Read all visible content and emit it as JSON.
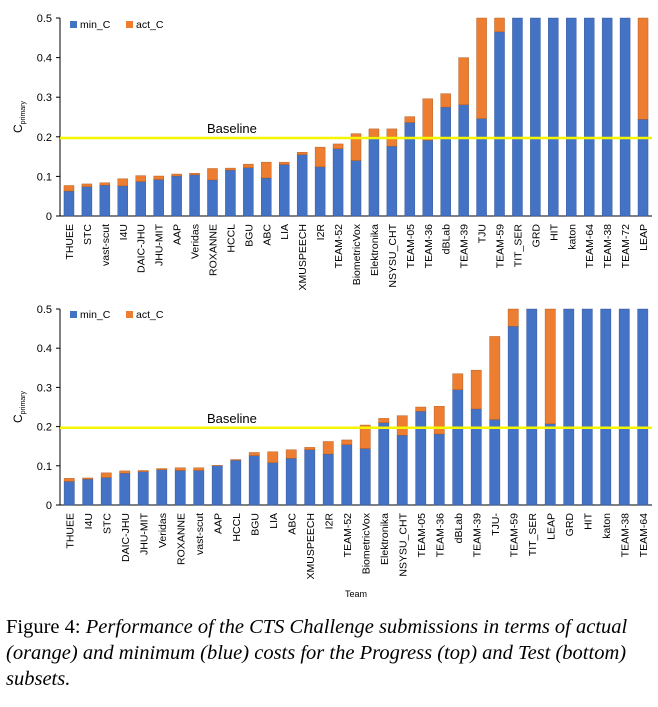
{
  "chart_data": [
    {
      "type": "bar",
      "stacked": true,
      "ylabel_main": "C",
      "ylabel_sub": "primary",
      "xlabel": "",
      "ylim": [
        0,
        0.5
      ],
      "yticks": [
        "0",
        "0.1",
        "0.2",
        "0.3",
        "0.4",
        "0.5"
      ],
      "baseline": {
        "label": "Baseline",
        "value": 0.197,
        "color": "#f5f500"
      },
      "legend": {
        "position": "top-left"
      },
      "categories": [
        "THUEE",
        "STC",
        "vast-scut",
        "I4U",
        "DAIC-JHU",
        "JHU-MIT",
        "AAP",
        "Veridas",
        "ROXANNE",
        "HCCL",
        "BGU",
        "ABC",
        "LIA",
        "XMUSPEECH",
        "I2R",
        "TEAM-52",
        "BiometricVox",
        "Elektronika",
        "NSYSU_CHT",
        "TEAM-05",
        "TEAM-36",
        "dBLab",
        "TEAM-39",
        "TJU",
        "TEAM-59",
        "TIT_SER",
        "GRD",
        "HIT",
        "katon",
        "TEAM-64",
        "TEAM-38",
        "TEAM-72",
        "LEAP"
      ],
      "series": [
        {
          "name": "min_C",
          "color": "#4472c4",
          "values": [
            0.063,
            0.074,
            0.078,
            0.076,
            0.087,
            0.092,
            0.101,
            0.104,
            0.091,
            0.116,
            0.122,
            0.096,
            0.13,
            0.155,
            0.124,
            0.17,
            0.14,
            0.2,
            0.176,
            0.236,
            0.191,
            0.275,
            0.281,
            0.246,
            0.465,
            0.5,
            0.5,
            0.5,
            0.5,
            0.5,
            0.5,
            0.5,
            0.244
          ]
        },
        {
          "name": "act_C",
          "color": "#ed7d31",
          "values": [
            0.014,
            0.007,
            0.006,
            0.018,
            0.015,
            0.009,
            0.005,
            0.004,
            0.029,
            0.005,
            0.009,
            0.04,
            0.006,
            0.006,
            0.05,
            0.012,
            0.068,
            0.02,
            0.044,
            0.015,
            0.105,
            0.034,
            0.119,
            0.254,
            0.035,
            0,
            0,
            0,
            0,
            0,
            0,
            0,
            0.256
          ]
        }
      ]
    },
    {
      "type": "bar",
      "stacked": true,
      "ylabel_main": "C",
      "ylabel_sub": "primary",
      "xlabel": "Team",
      "ylim": [
        0,
        0.5
      ],
      "yticks": [
        "0",
        "0.1",
        "0.2",
        "0.3",
        "0.4",
        "0.5"
      ],
      "baseline": {
        "label": "Baseline",
        "value": 0.197,
        "color": "#f5f500"
      },
      "legend": {
        "position": "top-left"
      },
      "categories": [
        "THUEE",
        "I4U",
        "STC",
        "DAIC-JHU",
        "JHU-MIT",
        "Veridas",
        "ROXANNE",
        "vast-scut",
        "AAP",
        "HCCL",
        "BGU",
        "LIA",
        "ABC",
        "XMUSPEECH",
        "I2R",
        "TEAM-52",
        "BiometricVox",
        "Elektronika",
        "NSYSU_CHT",
        "TEAM-05",
        "TEAM-36",
        "dBLab",
        "TEAM-39",
        "TJU-",
        "TEAM-59",
        "TIT_SER",
        "LEAP",
        "GRD",
        "HIT",
        "katon",
        "TEAM-38",
        "TEAM-64"
      ],
      "series": [
        {
          "name": "min_C",
          "color": "#4472c4",
          "values": [
            0.06,
            0.066,
            0.07,
            0.081,
            0.085,
            0.09,
            0.088,
            0.088,
            0.1,
            0.114,
            0.126,
            0.108,
            0.119,
            0.141,
            0.13,
            0.154,
            0.144,
            0.21,
            0.178,
            0.239,
            0.181,
            0.294,
            0.245,
            0.218,
            0.456,
            0.5,
            0.207,
            0.5,
            0.5,
            0.5,
            0.5,
            0.5
          ]
        },
        {
          "name": "act_C",
          "color": "#ed7d31",
          "values": [
            0.008,
            0.003,
            0.012,
            0.006,
            0.003,
            0.003,
            0.007,
            0.007,
            0.001,
            0.002,
            0.008,
            0.028,
            0.022,
            0.006,
            0.032,
            0.012,
            0.06,
            0.011,
            0.05,
            0.011,
            0.071,
            0.041,
            0.099,
            0.212,
            0.044,
            0,
            0.293,
            0,
            0,
            0,
            0,
            0
          ]
        }
      ]
    }
  ],
  "caption": {
    "lead": "Figure 4:",
    "text": "Performance of the CTS Challenge submissions in terms of actual (orange) and minimum (blue) costs for the Progress (top) and Test (bottom) subsets."
  }
}
